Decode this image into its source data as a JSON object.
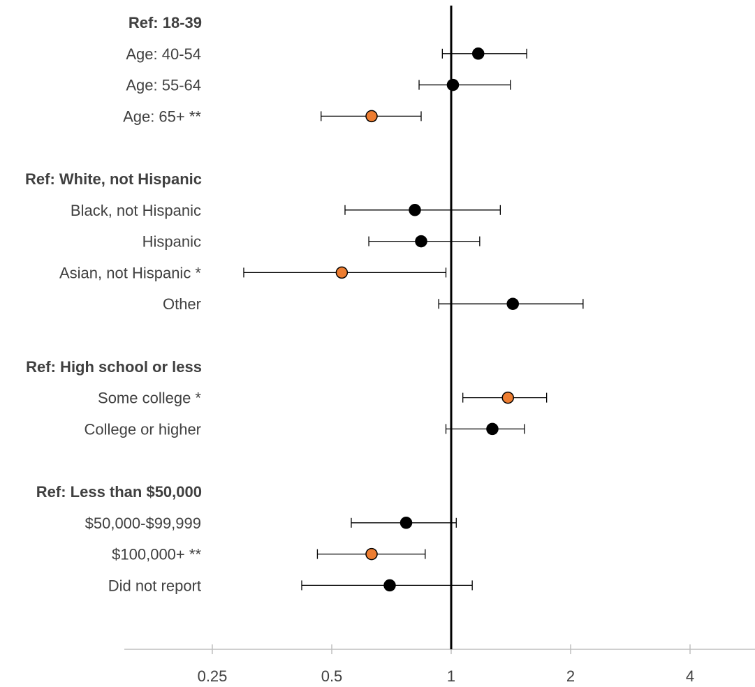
{
  "chart_data": {
    "type": "scatter",
    "subtype": "forest-plot",
    "title": "",
    "xlabel": "",
    "ylabel": "",
    "x_scale": "log2",
    "xlim": [
      0.125,
      6.7
    ],
    "reference_line": 1,
    "grid": false,
    "legend": "none",
    "xticks": [
      {
        "value": 0.25,
        "label": "0.25"
      },
      {
        "value": 0.5,
        "label": "0.5"
      },
      {
        "value": 1,
        "label": "1"
      },
      {
        "value": 2,
        "label": "2"
      },
      {
        "value": 4,
        "label": "4"
      }
    ],
    "colors": {
      "significant": "#ed7d31",
      "not_significant": "#000000",
      "reference_line": "#000000",
      "label_text": "#404040"
    },
    "rows": [
      {
        "label": "Ref: 18-39",
        "is_header": true
      },
      {
        "label": "Age: 40-54",
        "estimate": 1.17,
        "lower": 0.95,
        "upper": 1.55,
        "significant": false
      },
      {
        "label": "Age: 55-64",
        "estimate": 1.01,
        "lower": 0.83,
        "upper": 1.41,
        "significant": false
      },
      {
        "label": "Age: 65+ **",
        "estimate": 0.63,
        "lower": 0.47,
        "upper": 0.84,
        "significant": true
      },
      {
        "label": "Ref: White, not Hispanic",
        "is_header": true
      },
      {
        "label": "Black, not Hispanic",
        "estimate": 0.81,
        "lower": 0.54,
        "upper": 1.33,
        "significant": false
      },
      {
        "label": "Hispanic",
        "estimate": 0.84,
        "lower": 0.62,
        "upper": 1.18,
        "significant": false
      },
      {
        "label": "Asian, not Hispanic *",
        "estimate": 0.53,
        "lower": 0.3,
        "upper": 0.97,
        "significant": true
      },
      {
        "label": "Other",
        "estimate": 1.43,
        "lower": 0.93,
        "upper": 2.15,
        "significant": false
      },
      {
        "label": "Ref: High school or less",
        "is_header": true
      },
      {
        "label": "Some college *",
        "estimate": 1.39,
        "lower": 1.07,
        "upper": 1.74,
        "significant": true
      },
      {
        "label": "College or higher",
        "estimate": 1.27,
        "lower": 0.97,
        "upper": 1.53,
        "significant": false
      },
      {
        "label": "Ref: Less than $50,000",
        "is_header": true
      },
      {
        "label": "$50,000-$99,999",
        "estimate": 0.77,
        "lower": 0.56,
        "upper": 1.03,
        "significant": false
      },
      {
        "label": "$100,000+ **",
        "estimate": 0.63,
        "lower": 0.46,
        "upper": 0.86,
        "significant": true
      },
      {
        "label": "Did not report",
        "estimate": 0.7,
        "lower": 0.42,
        "upper": 1.13,
        "significant": false
      }
    ]
  }
}
